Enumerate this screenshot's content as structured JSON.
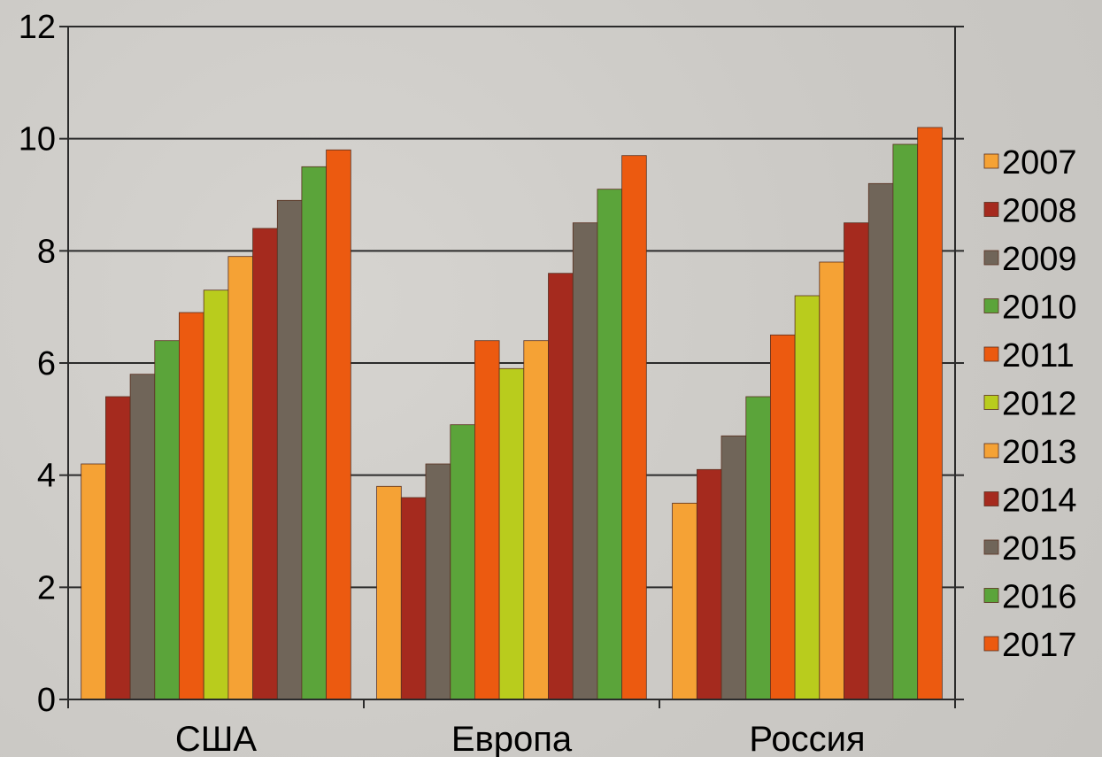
{
  "chart_data": {
    "type": "bar",
    "title": "",
    "xlabel": "",
    "ylabel": "",
    "categories": [
      "США",
      "Европа",
      "Россия"
    ],
    "ylim": [
      0,
      12
    ],
    "yticks": [
      "0",
      "2",
      "4",
      "6",
      "8",
      "10",
      "12"
    ],
    "grid": true,
    "legend_position": "right",
    "series": [
      {
        "name": "2007",
        "color": "#f5a235",
        "values": [
          4.2,
          3.8,
          3.5
        ]
      },
      {
        "name": "2008",
        "color": "#a52a1e",
        "values": [
          5.4,
          3.6,
          4.1
        ]
      },
      {
        "name": "2009",
        "color": "#706559",
        "values": [
          5.8,
          4.2,
          4.7
        ]
      },
      {
        "name": "2010",
        "color": "#5ba43a",
        "values": [
          6.4,
          4.9,
          5.4
        ]
      },
      {
        "name": "2011",
        "color": "#ec5a10",
        "values": [
          6.9,
          6.4,
          6.5
        ]
      },
      {
        "name": "2012",
        "color": "#b9cc1d",
        "values": [
          7.3,
          5.9,
          7.2
        ]
      },
      {
        "name": "2013",
        "color": "#f5a235",
        "values": [
          7.9,
          6.4,
          7.8
        ]
      },
      {
        "name": "2014",
        "color": "#a52a1e",
        "values": [
          8.4,
          7.6,
          8.5
        ]
      },
      {
        "name": "2015",
        "color": "#706559",
        "values": [
          8.9,
          8.5,
          9.2
        ]
      },
      {
        "name": "2016",
        "color": "#5ba43a",
        "values": [
          9.5,
          9.1,
          9.9
        ]
      },
      {
        "name": "2017",
        "color": "#ec5a10",
        "values": [
          9.8,
          9.7,
          10.2
        ]
      }
    ]
  }
}
